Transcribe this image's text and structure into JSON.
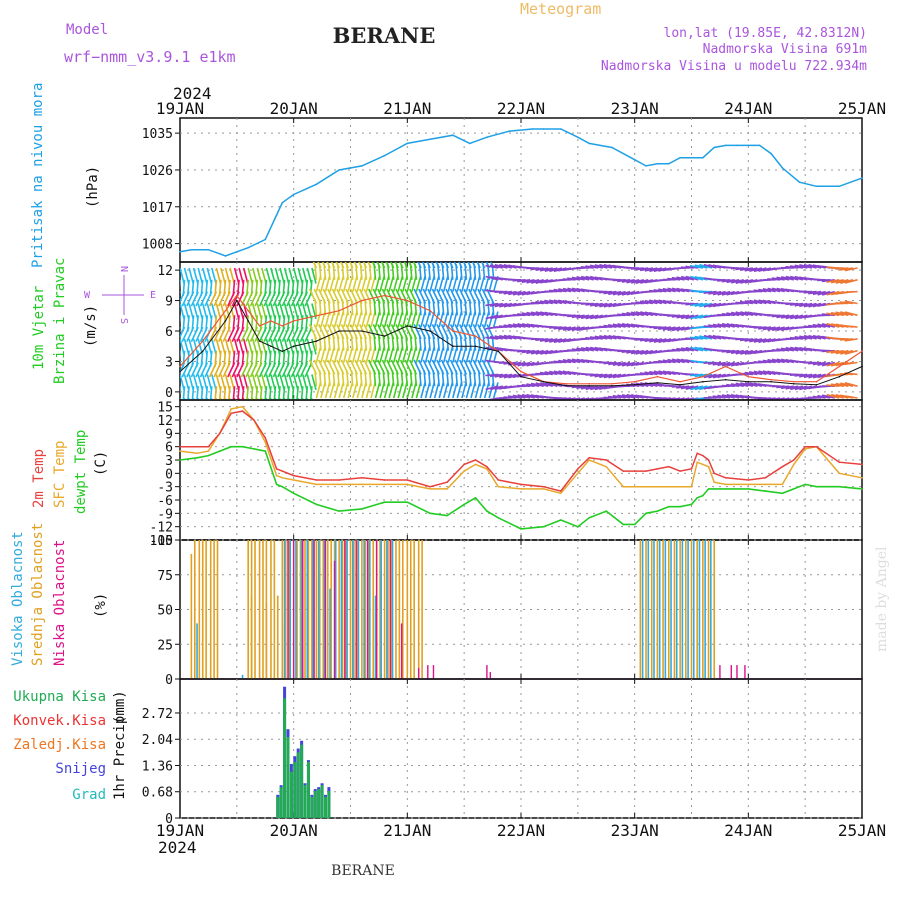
{
  "header": {
    "model_label": "Model",
    "model_name": "wrf−nmm_v3.9.1  e1km",
    "title": "BERANE",
    "subtitle": "Meteogram",
    "coords": "lon,lat (19.85E, 42.8312N)",
    "elevation": "Nadmorska Visina 691m",
    "model_elevation": "Nadmorska Visina u modelu 722.934m",
    "credit": "made by Angel",
    "footer": "BERANE"
  },
  "colors": {
    "pressure": "#1ea0e6",
    "temp2m": "#e8403c",
    "sfc": "#e8a82a",
    "dewpt": "#22cc22",
    "high_cloud": "#33aadd",
    "mid_cloud": "#e0a020",
    "low_cloud": "#dd1188",
    "precip_total": "#22aa55",
    "precip_conv": "#ee3333",
    "precip_frozen": "#ee7722",
    "snow": "#4444dd",
    "hail": "#22bbbb",
    "purple": "#aa55dd",
    "grid": "#999999"
  },
  "chart_data": [
    {
      "type": "line",
      "panel": "pressure",
      "year": "2024",
      "x_ticks": [
        "19JAN",
        "20JAN",
        "21JAN",
        "22JAN",
        "23JAN",
        "24JAN",
        "25JAN"
      ],
      "ylabel": [
        "Pritisak na nivou mora",
        "(hPa)"
      ],
      "y_ticks": [
        "1008",
        "1017",
        "1026",
        "1035"
      ],
      "ylim": [
        1003.5,
        1038.7
      ],
      "series": [
        {
          "color_key": "pressure",
          "x": [
            0,
            0.1,
            0.25,
            0.4,
            0.5,
            0.6,
            0.75,
            0.85,
            0.9,
            1.0,
            1.2,
            1.4,
            1.6,
            1.8,
            2.0,
            2.2,
            2.4,
            2.55,
            2.7,
            2.9,
            3.1,
            3.2,
            3.35,
            3.5,
            3.6,
            3.8,
            4.0,
            4.1,
            4.2,
            4.3,
            4.4,
            4.6,
            4.7,
            4.8,
            4.9,
            5.0,
            5.05,
            5.1,
            5.2,
            5.3,
            5.45,
            5.6,
            5.8,
            6.0
          ],
          "y": [
            1006,
            1006.5,
            1006.5,
            1005,
            1006,
            1007,
            1009,
            1015,
            1018,
            1020,
            1022.5,
            1026,
            1027,
            1029.5,
            1032.5,
            1033.5,
            1034.5,
            1032.5,
            1034,
            1035.5,
            1036,
            1036,
            1036,
            1034,
            1032.5,
            1031.5,
            1028.5,
            1027,
            1027.5,
            1027.5,
            1029,
            1029,
            1031.5,
            1032,
            1032,
            1032,
            1032,
            1032,
            1030,
            1026.5,
            1023,
            1022,
            1022,
            1024
          ]
        }
      ]
    },
    {
      "type": "line",
      "panel": "wind",
      "ylabel": [
        "10m Vjetar",
        "Brzina i Pravac",
        "(m/s)"
      ],
      "compass": {
        "north": "N",
        "south": "S",
        "west": "W",
        "east": "E"
      },
      "y_ticks": [
        "0",
        "3",
        "6",
        "9",
        "12"
      ],
      "ylim": [
        -0.8,
        12.8
      ],
      "series": [
        {
          "name_key": "speed",
          "color_key": "dark",
          "x": [
            0,
            0.2,
            0.4,
            0.5,
            0.6,
            0.7,
            0.8,
            0.9,
            1.0,
            1.2,
            1.4,
            1.6,
            1.8,
            2.0,
            2.2,
            2.4,
            2.6,
            2.8,
            3.0,
            3.2,
            3.4,
            3.6,
            3.8,
            4.0,
            4.2,
            4.4,
            4.6,
            4.8,
            5.0,
            5.2,
            5.4,
            5.6,
            5.8,
            6.0
          ],
          "y": [
            2,
            4,
            7,
            9,
            7,
            5,
            4.5,
            4,
            4.5,
            5,
            6,
            6,
            5.5,
            6.5,
            6,
            4.5,
            4.5,
            4,
            1.5,
            1,
            0.6,
            0.6,
            0.6,
            0.7,
            0.9,
            0.7,
            1,
            1.2,
            1.0,
            1.0,
            0.8,
            0.7,
            1.5,
            2.5
          ]
        },
        {
          "name_key": "gust",
          "color_key": "temp2m",
          "x": [
            0,
            0.2,
            0.4,
            0.5,
            0.6,
            0.7,
            0.8,
            0.9,
            1.0,
            1.2,
            1.4,
            1.6,
            1.8,
            2.0,
            2.2,
            2.4,
            2.6,
            2.8,
            3.0,
            3.2,
            3.4,
            3.6,
            3.8,
            4.0,
            4.2,
            4.4,
            4.6,
            4.8,
            5.0,
            5.2,
            5.4,
            5.6,
            5.8,
            6.0
          ],
          "y": [
            2.5,
            5,
            8,
            9.5,
            8,
            6.5,
            7,
            6.5,
            7,
            7.5,
            8,
            9,
            9.5,
            9,
            8,
            6,
            5.5,
            4,
            2,
            1,
            0.8,
            0.8,
            0.8,
            1,
            1.5,
            1,
            1.5,
            2.5,
            1.5,
            1.2,
            1,
            1,
            2.5,
            4
          ]
        }
      ]
    },
    {
      "type": "line",
      "panel": "temperature",
      "ylabel": [
        "2m Temp",
        "SFC Temp",
        "dewpt Temp",
        "(C)"
      ],
      "y_ticks": [
        "-15",
        "-12",
        "-9",
        "-6",
        "-3",
        "0",
        "3",
        "6",
        "9",
        "12",
        "15"
      ],
      "ylim": [
        -15,
        16.5
      ],
      "series": [
        {
          "name_key": "temp2m",
          "color_key": "temp2m",
          "x": [
            0,
            0.15,
            0.25,
            0.35,
            0.45,
            0.55,
            0.65,
            0.75,
            0.85,
            0.9,
            1.0,
            1.2,
            1.4,
            1.6,
            1.8,
            2.0,
            2.2,
            2.35,
            2.5,
            2.6,
            2.7,
            2.8,
            3.0,
            3.2,
            3.35,
            3.5,
            3.6,
            3.75,
            3.9,
            4.0,
            4.1,
            4.2,
            4.3,
            4.4,
            4.5,
            4.55,
            4.6,
            4.65,
            4.7,
            4.8,
            5.0,
            5.15,
            5.3,
            5.4,
            5.5,
            5.6,
            5.8,
            6.0
          ],
          "y": [
            6,
            6,
            6,
            9,
            13.5,
            14,
            12,
            8,
            1,
            0.5,
            -0.5,
            -1.5,
            -1.5,
            -1,
            -1.5,
            -1.5,
            -3,
            -2,
            2,
            3,
            1.5,
            -1.5,
            -2.5,
            -3,
            -4,
            1,
            3.5,
            3,
            0.5,
            0.5,
            0.5,
            1,
            1.5,
            0.5,
            1,
            4.5,
            4,
            3,
            0,
            -1,
            -1.5,
            -1,
            1.5,
            3,
            6,
            6,
            2.5,
            2
          ]
        },
        {
          "name_key": "sfc",
          "color_key": "sfc",
          "x": [
            0,
            0.15,
            0.25,
            0.35,
            0.45,
            0.55,
            0.65,
            0.75,
            0.85,
            0.9,
            1.0,
            1.2,
            1.4,
            1.6,
            1.8,
            2.0,
            2.2,
            2.35,
            2.5,
            2.6,
            2.7,
            2.8,
            3.0,
            3.2,
            3.35,
            3.5,
            3.6,
            3.75,
            3.9,
            4.0,
            4.1,
            4.2,
            4.3,
            4.4,
            4.5,
            4.55,
            4.6,
            4.65,
            4.7,
            4.8,
            5.0,
            5.15,
            5.3,
            5.4,
            5.5,
            5.6,
            5.8,
            6.0
          ],
          "y": [
            5,
            4.5,
            5,
            9,
            14.5,
            15,
            12,
            7,
            -0.5,
            -1,
            -1.5,
            -2.5,
            -2.5,
            -2.5,
            -2.5,
            -2.5,
            -3.5,
            -3.5,
            0.5,
            2,
            1,
            -3,
            -3.5,
            -3.5,
            -4.5,
            0,
            3,
            1.5,
            -3,
            -3,
            -3,
            -3,
            -3,
            -3,
            -3,
            2.5,
            2,
            1.5,
            -2,
            -2.5,
            -2.5,
            -2.5,
            -2.5,
            2,
            5.5,
            6,
            0,
            -1
          ]
        },
        {
          "name_key": "dewpt",
          "color_key": "dewpt",
          "x": [
            0,
            0.15,
            0.25,
            0.35,
            0.45,
            0.55,
            0.65,
            0.75,
            0.85,
            0.9,
            1.0,
            1.2,
            1.4,
            1.6,
            1.8,
            2.0,
            2.2,
            2.35,
            2.5,
            2.6,
            2.7,
            2.8,
            3.0,
            3.2,
            3.35,
            3.5,
            3.6,
            3.75,
            3.9,
            4.0,
            4.1,
            4.2,
            4.3,
            4.4,
            4.5,
            4.55,
            4.6,
            4.65,
            4.7,
            4.8,
            5.0,
            5.15,
            5.3,
            5.4,
            5.5,
            5.6,
            5.8,
            6.0
          ],
          "y": [
            3,
            3.5,
            4,
            5,
            6,
            6,
            5.5,
            5,
            -2.5,
            -3,
            -4.5,
            -7,
            -8.5,
            -8,
            -6.5,
            -6.5,
            -9,
            -9.5,
            -7,
            -5.5,
            -8.5,
            -10,
            -12.5,
            -12,
            -10.5,
            -12,
            -10,
            -8.5,
            -11.5,
            -11.5,
            -9,
            -8.5,
            -7.5,
            -7.5,
            -7,
            -5.5,
            -5,
            -3.5,
            -3.5,
            -3.5,
            -3.5,
            -4,
            -4.5,
            -3.5,
            -2.5,
            -3,
            -3,
            -3.5
          ]
        }
      ]
    },
    {
      "type": "bar",
      "panel": "clouds",
      "ylabel": [
        "Visoka Oblacnost",
        "Srednja Oblacnost",
        "Niska Oblacnost",
        "(%)"
      ],
      "y_ticks": [
        "0",
        "25",
        "50",
        "75",
        "100"
      ],
      "ylim": [
        0,
        100
      ],
      "mid": {
        "x": [
          0.1,
          0.13,
          0.17,
          0.2,
          0.23,
          0.27,
          0.3,
          0.33,
          0.6,
          0.63,
          0.66,
          0.7,
          0.73,
          0.76,
          0.8,
          0.83,
          0.9,
          0.93,
          0.96,
          1.0,
          1.03,
          1.06,
          1.1,
          1.13,
          1.16,
          1.2,
          1.23,
          1.26,
          1.3,
          1.33,
          1.36,
          1.4,
          1.43,
          1.46,
          1.5,
          1.53,
          1.56,
          1.6,
          1.63,
          1.66,
          1.7,
          1.73,
          1.76,
          1.8,
          1.83,
          1.86,
          1.9,
          1.93,
          1.96,
          2.0,
          2.03,
          2.06,
          2.1,
          2.13,
          4.05,
          4.1,
          4.15,
          4.2,
          4.25,
          4.3,
          4.35,
          4.4,
          4.45,
          4.5,
          4.55,
          4.6,
          4.65,
          4.7,
          0.63,
          0.9,
          0.76,
          0.86
        ],
        "y": [
          90,
          100,
          100,
          100,
          100,
          100,
          100,
          100,
          100,
          100,
          100,
          100,
          100,
          100,
          100,
          100,
          100,
          100,
          100,
          100,
          100,
          100,
          100,
          100,
          100,
          100,
          100,
          100,
          100,
          100,
          100,
          100,
          100,
          100,
          100,
          100,
          100,
          100,
          100,
          100,
          100,
          100,
          100,
          100,
          100,
          100,
          100,
          100,
          100,
          100,
          100,
          100,
          100,
          100,
          100,
          100,
          100,
          100,
          100,
          100,
          100,
          100,
          100,
          100,
          100,
          100,
          100,
          100,
          60,
          40,
          55,
          60
        ]
      },
      "high": {
        "x": [
          0.92,
          0.97,
          1.02,
          1.07,
          1.12,
          1.17,
          1.22,
          1.27,
          1.32,
          1.37,
          1.42,
          1.47,
          1.52,
          1.57,
          1.62,
          1.67,
          1.72,
          1.77,
          1.82,
          1.87,
          4.07,
          4.12,
          4.17,
          4.22,
          4.27,
          4.32,
          4.37,
          4.42,
          4.47,
          4.52,
          4.57,
          4.62,
          4.67,
          0.15,
          0.55
        ],
        "y": [
          100,
          100,
          100,
          100,
          100,
          100,
          100,
          100,
          65,
          100,
          100,
          100,
          100,
          100,
          100,
          100,
          60,
          100,
          100,
          100,
          100,
          100,
          100,
          100,
          100,
          100,
          100,
          100,
          100,
          100,
          100,
          100,
          100,
          40,
          3
        ]
      },
      "low": {
        "x": [
          0.95,
          1.0,
          1.08,
          1.18,
          1.28,
          1.36,
          1.45,
          1.55,
          1.65,
          1.73,
          1.85,
          1.95,
          2.1,
          2.18,
          2.23,
          2.7,
          2.73,
          4.75,
          4.85,
          4.9,
          4.97
        ],
        "y": [
          100,
          100,
          100,
          100,
          100,
          85,
          100,
          100,
          100,
          100,
          100,
          40,
          8,
          10,
          10,
          10,
          5,
          10,
          10,
          10,
          10
        ]
      }
    },
    {
      "type": "bar",
      "panel": "precipitation",
      "ylabel": [
        "1hr Precip",
        "(mm)"
      ],
      "legend": [
        "Ukupna Kisa",
        "Konvek.Kisa",
        "Zaledj.Kisa",
        "Snijeg",
        "Grad"
      ],
      "y_ticks": [
        "0",
        "0.68",
        "1.36",
        "2.04",
        "2.72"
      ],
      "ylim": [
        0,
        3.6
      ],
      "x": [
        0.86,
        0.89,
        0.92,
        0.95,
        0.98,
        1.01,
        1.04,
        1.07,
        1.1,
        1.13,
        1.16,
        1.19,
        1.22,
        1.25,
        1.28,
        1.31
      ],
      "snow": [
        0.6,
        0.85,
        3.4,
        2.3,
        1.4,
        1.6,
        1.8,
        2.0,
        0.9,
        1.5,
        0.6,
        0.75,
        0.8,
        0.9,
        0.6,
        0.8
      ],
      "rain": [
        0.55,
        0.8,
        3.1,
        2.1,
        1.2,
        1.45,
        1.7,
        1.9,
        0.85,
        1.45,
        0.55,
        0.7,
        0.75,
        0.85,
        0.55,
        0.7
      ],
      "x_ticks": [
        "19JAN",
        "20JAN",
        "21JAN",
        "22JAN",
        "23JAN",
        "24JAN",
        "25JAN"
      ],
      "year": "2024"
    }
  ]
}
